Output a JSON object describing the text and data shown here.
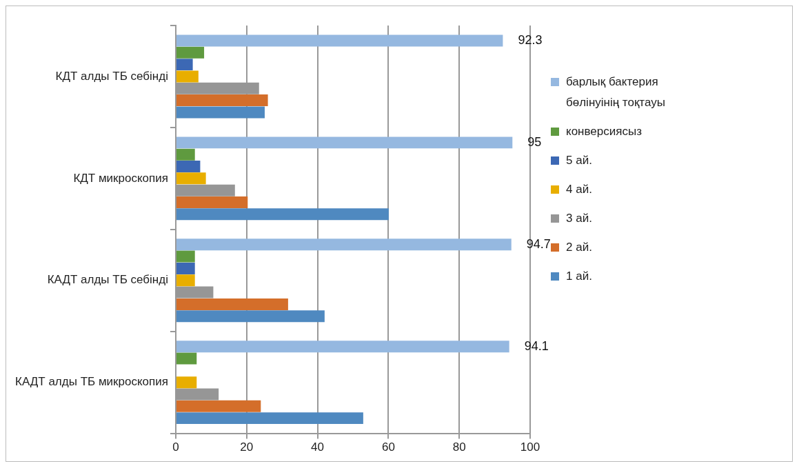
{
  "chart_data": {
    "type": "bar",
    "orientation": "horizontal",
    "categories": [
      "КДТ алды ТБ себінді",
      "КДТ микроскопия",
      "КАДТ алды ТБ себінді",
      "КАДТ алды ТБ микроскопия"
    ],
    "series": [
      {
        "name": "барлық бактерия бөлінуінің тоқтауы",
        "color": "#95b8e0",
        "values": [
          92.3,
          95,
          94.7,
          94.1
        ],
        "value_labels": [
          "92.3",
          "95",
          "94.7",
          "94.1"
        ]
      },
      {
        "name": "конверсиясыз",
        "color": "#5f9a3f",
        "values": [
          8.0,
          5.4,
          5.4,
          5.9
        ]
      },
      {
        "name": "5 ай.",
        "color": "#3c68b4",
        "values": [
          4.8,
          6.9,
          5.4,
          null
        ]
      },
      {
        "name": "4 ай.",
        "color": "#e8ae00",
        "values": [
          6.4,
          8.5,
          5.4,
          5.9
        ]
      },
      {
        "name": "3 ай.",
        "color": "#969696",
        "values": [
          23.5,
          16.7,
          10.6,
          12.1
        ]
      },
      {
        "name": "2 ай.",
        "color": "#d46e2a",
        "values": [
          26.0,
          20.3,
          31.7,
          24.0
        ]
      },
      {
        "name": "1 ай.",
        "color": "#4f89c0",
        "values": [
          25.1,
          60.1,
          42.0,
          52.9
        ]
      }
    ],
    "xlim": [
      0,
      100
    ],
    "xticks": [
      0,
      20,
      40,
      60,
      80,
      100
    ],
    "grid": "x",
    "legend": "right"
  }
}
